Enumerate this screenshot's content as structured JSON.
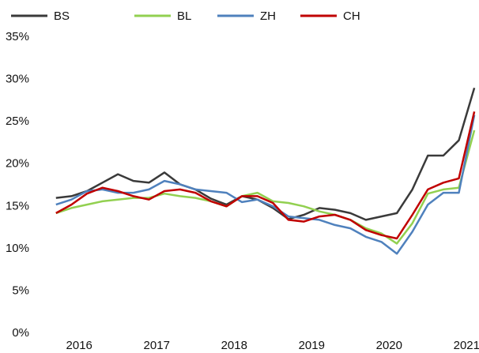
{
  "chart_data": {
    "type": "line",
    "x": [
      2015.7,
      2015.9,
      2016.1,
      2016.3,
      2016.5,
      2016.7,
      2016.9,
      2017.1,
      2017.3,
      2017.5,
      2017.7,
      2017.9,
      2018.1,
      2018.3,
      2018.5,
      2018.7,
      2018.9,
      2019.1,
      2019.3,
      2019.5,
      2019.7,
      2019.9,
      2020.1,
      2020.3,
      2020.5,
      2020.7,
      2020.9,
      2021.1
    ],
    "series": [
      {
        "name": "BS",
        "color": "#3a3a3a",
        "values": [
          16.0,
          16.2,
          16.8,
          17.8,
          18.8,
          18.0,
          17.8,
          19.0,
          17.6,
          17.0,
          15.9,
          15.2,
          16.2,
          15.8,
          14.8,
          13.5,
          14.0,
          14.8,
          14.6,
          14.2,
          13.4,
          13.8,
          14.2,
          17.0,
          21.0,
          21.0,
          22.8,
          29.0
        ]
      },
      {
        "name": "BL",
        "color": "#92d050",
        "values": [
          14.2,
          14.8,
          15.2,
          15.6,
          15.8,
          16.0,
          16.0,
          16.5,
          16.2,
          16.0,
          15.6,
          15.0,
          16.2,
          16.6,
          15.6,
          15.4,
          15.0,
          14.4,
          14.0,
          13.4,
          12.4,
          11.8,
          10.6,
          13.0,
          16.5,
          17.0,
          17.2,
          24.0
        ]
      },
      {
        "name": "ZH",
        "color": "#4f81bd",
        "values": [
          15.2,
          15.8,
          16.8,
          17.0,
          16.6,
          16.6,
          17.0,
          18.0,
          17.6,
          17.0,
          16.8,
          16.6,
          15.5,
          15.8,
          15.0,
          13.8,
          13.6,
          13.4,
          12.8,
          12.4,
          11.4,
          10.8,
          9.4,
          12.0,
          15.2,
          16.6,
          16.6,
          25.8
        ]
      },
      {
        "name": "CH",
        "color": "#c00000",
        "values": [
          14.2,
          15.2,
          16.5,
          17.2,
          16.8,
          16.2,
          15.8,
          16.8,
          17.0,
          16.6,
          15.6,
          15.0,
          16.2,
          16.2,
          15.4,
          13.4,
          13.2,
          13.8,
          14.0,
          13.4,
          12.2,
          11.6,
          11.2,
          14.0,
          17.0,
          17.8,
          18.3,
          26.2
        ]
      }
    ],
    "xlim": [
      2015.61,
      2021.16
    ],
    "xticks": [
      2016,
      2017,
      2018,
      2019,
      2020,
      2021
    ],
    "ylim": [
      0,
      35
    ],
    "yticks": [
      {
        "value": 0,
        "label": "0%"
      },
      {
        "value": 5,
        "label": "5%"
      },
      {
        "value": 10,
        "label": "10%"
      },
      {
        "value": 15,
        "label": "15%"
      },
      {
        "value": 20,
        "label": "20%"
      },
      {
        "value": 25,
        "label": "25%"
      },
      {
        "value": 30,
        "label": "30%"
      },
      {
        "value": 35,
        "label": "35%"
      }
    ],
    "grid": false,
    "legend": "top"
  }
}
